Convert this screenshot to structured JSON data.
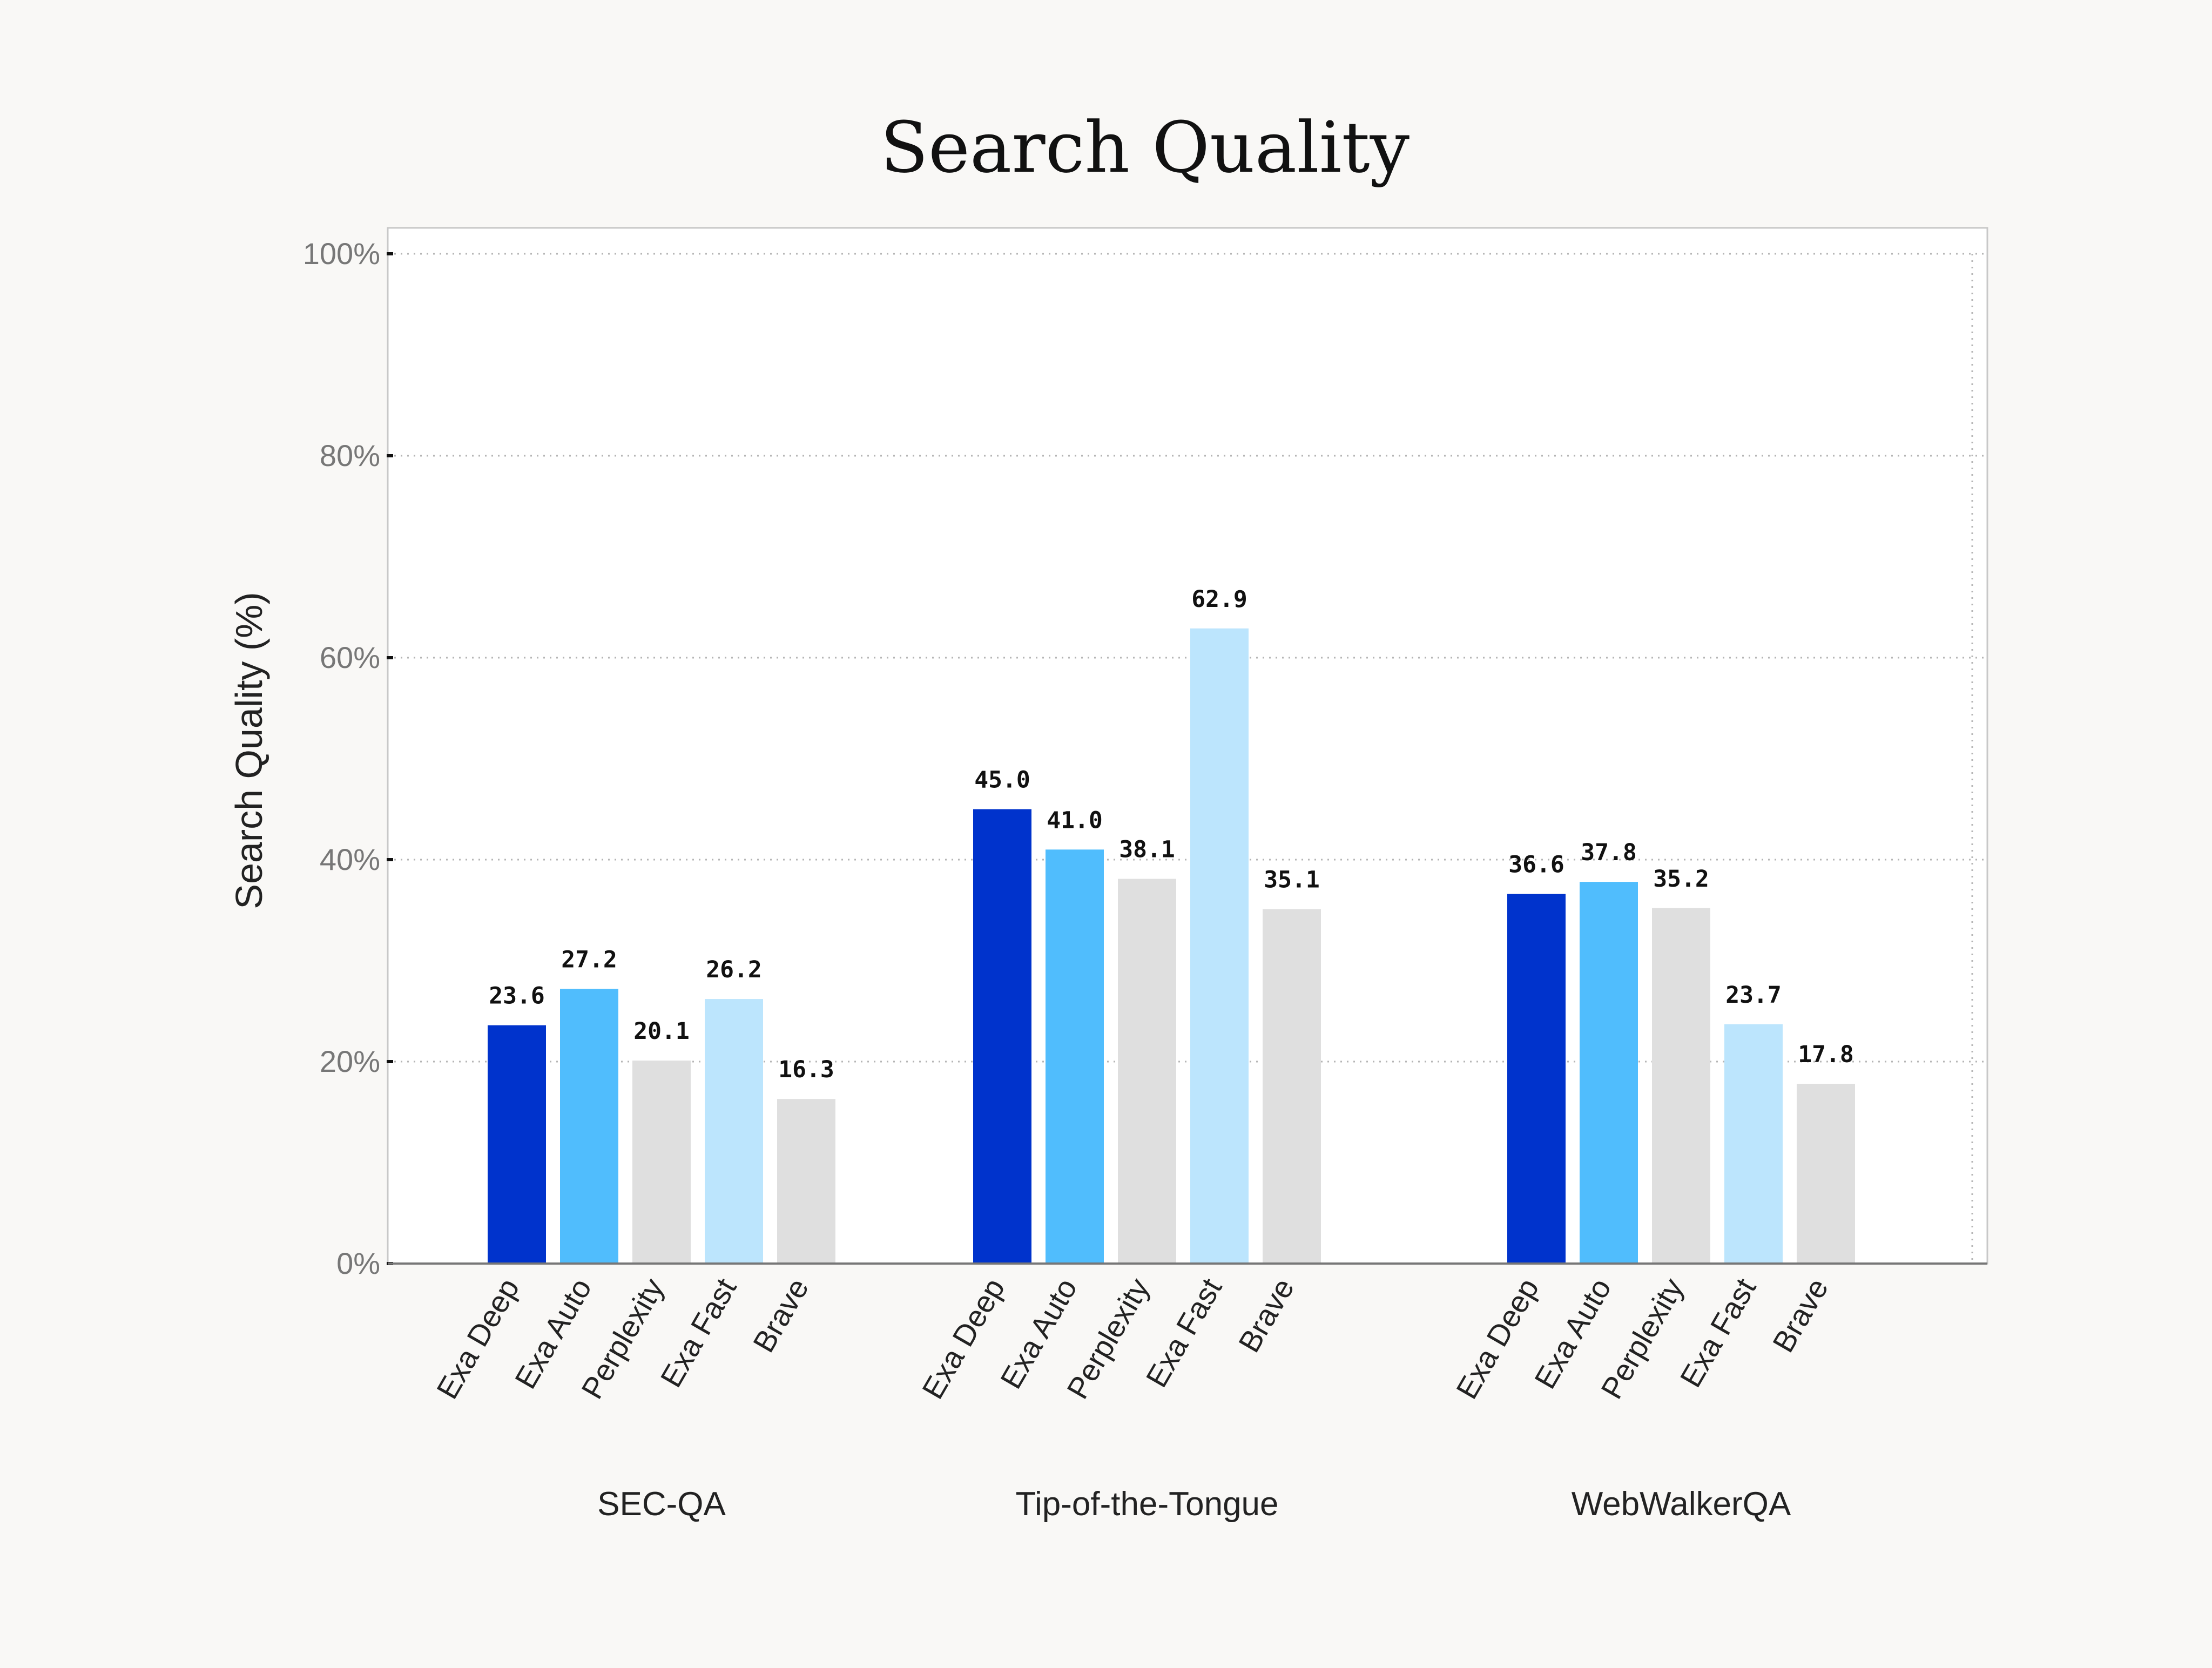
{
  "chart_data": {
    "type": "bar",
    "title": "Search Quality",
    "xlabel": "",
    "ylabel": "Search Quality (%)",
    "ylim": [
      0,
      100
    ],
    "ytick_labels": [
      "0%",
      "20%",
      "40%",
      "60%",
      "80%",
      "100%"
    ],
    "grid": true,
    "groups": [
      {
        "name": "SEC-QA",
        "bars": [
          {
            "label": "Exa Deep",
            "value": 23.6,
            "display": "23.6"
          },
          {
            "label": "Exa Auto",
            "value": 27.2,
            "display": "27.2"
          },
          {
            "label": "Perplexity",
            "value": 20.1,
            "display": "20.1"
          },
          {
            "label": "Exa Fast",
            "value": 26.2,
            "display": "26.2"
          },
          {
            "label": "Brave",
            "value": 16.3,
            "display": "16.3"
          }
        ]
      },
      {
        "name": "Tip-of-the-Tongue",
        "bars": [
          {
            "label": "Exa Deep",
            "value": 45.0,
            "display": "45.0"
          },
          {
            "label": "Exa Auto",
            "value": 41.0,
            "display": "41.0"
          },
          {
            "label": "Perplexity",
            "value": 38.1,
            "display": "38.1"
          },
          {
            "label": "Exa Fast",
            "value": 62.9,
            "display": "62.9"
          },
          {
            "label": "Brave",
            "value": 35.1,
            "display": "35.1"
          }
        ]
      },
      {
        "name": "WebWalkerQA",
        "bars": [
          {
            "label": "Exa Deep",
            "value": 36.6,
            "display": "36.6"
          },
          {
            "label": "Exa Auto",
            "value": 37.8,
            "display": "37.8"
          },
          {
            "label": "Perplexity",
            "value": 35.2,
            "display": "35.2"
          },
          {
            "label": "Exa Fast",
            "value": 23.7,
            "display": "23.7"
          },
          {
            "label": "Brave",
            "value": 17.8,
            "display": "17.8"
          }
        ]
      }
    ],
    "colors": {
      "Exa Deep": "#0033cc",
      "Exa Auto": "#50bdfd",
      "Perplexity": "#dfdfdf",
      "Exa Fast": "#bce5fd",
      "Brave": "#dfdfdf"
    }
  }
}
